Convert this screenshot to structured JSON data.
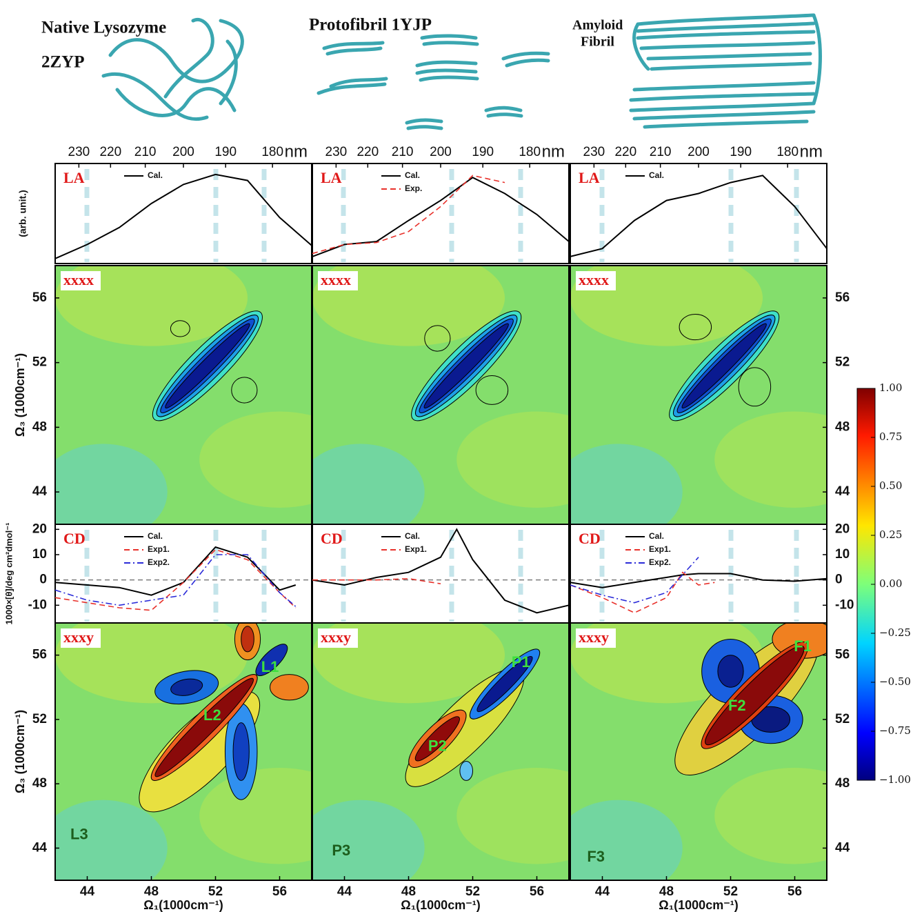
{
  "structures": [
    {
      "title": "Native Lysozyme",
      "code": "2ZYP"
    },
    {
      "title": "Protofibril 1YJP"
    },
    {
      "title_lines": [
        "Amyloid",
        "Fibril"
      ]
    }
  ],
  "chart_data": [
    {
      "type": "line",
      "panel": "LA",
      "ylabel": "(arb. unit.)",
      "nm_unit": "nm",
      "nm_ticks": [
        230,
        220,
        210,
        200,
        190,
        180
      ],
      "xlim": [
        42,
        58
      ],
      "ylim": [
        0,
        1
      ],
      "x": [
        42,
        44,
        46,
        48,
        50,
        52,
        54,
        56,
        58
      ],
      "series": [
        {
          "name": "Cal.",
          "color": "#000000",
          "linestyle": "solid",
          "values": [
            0.05,
            0.19,
            0.36,
            0.6,
            0.79,
            0.89,
            0.83,
            0.46,
            0.18
          ]
        }
      ]
    },
    {
      "type": "line",
      "panel": "LA",
      "nm_unit": "nm",
      "nm_ticks": [
        230,
        220,
        210,
        200,
        190,
        180
      ],
      "xlim": [
        42,
        58
      ],
      "ylim": [
        0,
        1
      ],
      "x": [
        42,
        44,
        46,
        48,
        50,
        52,
        54,
        56,
        58
      ],
      "series": [
        {
          "name": "Cal.",
          "color": "#000000",
          "linestyle": "solid",
          "values": [
            0.07,
            0.19,
            0.22,
            0.43,
            0.63,
            0.86,
            0.7,
            0.49,
            0.22
          ]
        },
        {
          "name": "Exp.",
          "color": "#e8302a",
          "linestyle": "dashed",
          "values": [
            0.1,
            0.19,
            0.21,
            0.32,
            0.57,
            0.88,
            0.81,
            null,
            null
          ]
        }
      ]
    },
    {
      "type": "line",
      "panel": "LA",
      "nm_unit": "nm",
      "nm_ticks": [
        230,
        220,
        210,
        200,
        190,
        180
      ],
      "xlim": [
        42,
        58
      ],
      "ylim": [
        0,
        1
      ],
      "x": [
        42,
        44,
        46,
        48,
        50,
        52,
        54,
        56,
        58
      ],
      "series": [
        {
          "name": "Cal.",
          "color": "#000000",
          "linestyle": "solid",
          "values": [
            0.07,
            0.15,
            0.43,
            0.63,
            0.7,
            0.81,
            0.88,
            0.57,
            0.15
          ]
        }
      ]
    },
    {
      "type": "contour",
      "panel": "xxxx",
      "ylabel": "Ω₃ (1000cm⁻¹)",
      "xlim": [
        42,
        58
      ],
      "ylim": [
        42,
        58
      ],
      "yticks": [
        44,
        48,
        52,
        56
      ]
    },
    {
      "type": "contour",
      "panel": "xxxx",
      "xlim": [
        42,
        58
      ],
      "ylim": [
        42,
        58
      ]
    },
    {
      "type": "contour",
      "panel": "xxxx",
      "xlim": [
        42,
        58
      ],
      "ylim": [
        42,
        58
      ],
      "yticks": [
        44,
        48,
        52,
        56
      ]
    },
    {
      "type": "line",
      "panel": "CD",
      "ylabel": "1000×[θ]/deg cm²dmol⁻¹",
      "xlim": [
        42,
        58
      ],
      "ylim": [
        -17,
        22
      ],
      "yticks": [
        20,
        10,
        0,
        -10
      ],
      "x": [
        42,
        44,
        46,
        48,
        50,
        52,
        54,
        56,
        57
      ],
      "series": [
        {
          "name": "Cal.",
          "color": "#000000",
          "linestyle": "solid",
          "values": [
            -1,
            -2,
            -3,
            -6,
            -1,
            13,
            9,
            -4,
            -2
          ]
        },
        {
          "name": "Exp1.",
          "color": "#e8302a",
          "linestyle": "dashed",
          "values": [
            -7,
            -9,
            -11,
            -12,
            -1,
            12,
            8,
            -5,
            -11
          ]
        },
        {
          "name": "Exp2.",
          "color": "#2a2ad8",
          "linestyle": "dashdot",
          "values": [
            -4,
            -8,
            -10,
            -8,
            -6,
            10,
            10,
            -5,
            -10.5
          ]
        }
      ]
    },
    {
      "type": "line",
      "panel": "CD",
      "xlim": [
        42,
        58
      ],
      "ylim": [
        -17,
        22
      ],
      "x": [
        42,
        44,
        46,
        48,
        50,
        51,
        52,
        54,
        56,
        58
      ],
      "series": [
        {
          "name": "Cal.",
          "color": "#000000",
          "linestyle": "solid",
          "values": [
            0,
            -2,
            1,
            3,
            9,
            20,
            8,
            -8,
            -13,
            -10
          ]
        },
        {
          "name": "Exp1.",
          "color": "#e8302a",
          "linestyle": "dashed",
          "values": [
            0,
            0,
            0,
            0.5,
            -1.5,
            null,
            null,
            null,
            null,
            null
          ]
        }
      ]
    },
    {
      "type": "line",
      "panel": "CD",
      "xlim": [
        42,
        58
      ],
      "ylim": [
        -17,
        22
      ],
      "yticks": [
        20,
        10,
        0,
        -10
      ],
      "x": [
        42,
        44,
        46,
        48,
        49,
        50,
        51,
        52,
        54,
        56,
        58
      ],
      "series": [
        {
          "name": "Cal.",
          "color": "#000000",
          "linestyle": "solid",
          "values": [
            -1,
            -3,
            -1,
            1,
            2,
            2.5,
            2.5,
            2.5,
            0,
            -0.5,
            0.5
          ]
        },
        {
          "name": "Exp1.",
          "color": "#e8302a",
          "linestyle": "dashed",
          "values": [
            -2,
            -7,
            -13,
            -7,
            3,
            -2,
            -1,
            null,
            null,
            null,
            null
          ]
        },
        {
          "name": "Exp2.",
          "color": "#2a2ad8",
          "linestyle": "dashdot",
          "values": [
            -2,
            -6,
            -9,
            -5,
            2,
            9,
            null,
            null,
            null,
            null,
            null
          ]
        }
      ]
    },
    {
      "type": "contour",
      "panel": "xxxy",
      "ylabel": "Ω₃ (1000cm⁻¹)",
      "xlabel": "Ω₁(1000cm⁻¹)",
      "xlim": [
        42,
        58
      ],
      "ylim": [
        42,
        58
      ],
      "xticks": [
        44,
        48,
        52,
        56
      ],
      "yticks": [
        44,
        48,
        52,
        56
      ],
      "annotations": [
        "L1",
        "L2",
        "L3"
      ]
    },
    {
      "type": "contour",
      "panel": "xxxy",
      "xlabel": "Ω₁(1000cm⁻¹)",
      "xlim": [
        42,
        58
      ],
      "ylim": [
        42,
        58
      ],
      "xticks": [
        44,
        48,
        52,
        56
      ],
      "annotations": [
        "P1",
        "P2",
        "P3"
      ]
    },
    {
      "type": "contour",
      "panel": "xxxy",
      "xlabel": "Ω₁(1000cm⁻¹)",
      "xlim": [
        42,
        58
      ],
      "ylim": [
        42,
        58
      ],
      "xticks": [
        44,
        48,
        52,
        56
      ],
      "yticks": [
        44,
        48,
        52,
        56
      ],
      "annotations": [
        "F1",
        "F2",
        "F3"
      ]
    }
  ],
  "colorbar": {
    "lim": [
      -1,
      1
    ],
    "ticks": [
      {
        "value": 1,
        "label": "1.00"
      },
      {
        "value": 0.75,
        "label": "0.75"
      },
      {
        "value": 0.5,
        "label": "0.50"
      },
      {
        "value": 0.25,
        "label": "0.25"
      },
      {
        "value": 0,
        "label": "0.00"
      },
      {
        "value": -0.25,
        "label": "−0.25"
      },
      {
        "value": -0.5,
        "label": "−0.50"
      },
      {
        "value": -0.75,
        "label": "−0.75"
      },
      {
        "value": -1,
        "label": "−1.00"
      }
    ]
  }
}
